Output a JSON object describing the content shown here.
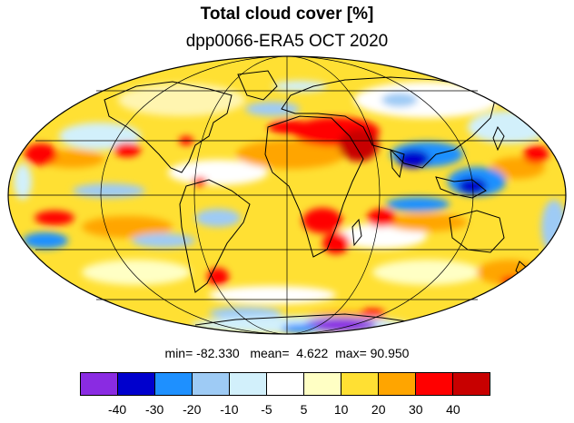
{
  "title": "Total cloud cover [%]",
  "subtitle": "dpp0066-ERA5 OCT 2020",
  "stats": {
    "min_label": "min=",
    "min": "-82.330",
    "mean_label": "mean=",
    "mean": "4.622",
    "max_label": "max=",
    "max": "90.950"
  },
  "map": {
    "projection": "mollweide",
    "field": "total cloud cover difference",
    "regions": [
      {
        "name": "north-africa-arabia-positive",
        "value": 35
      },
      {
        "name": "southern-africa-positive",
        "value": 35
      },
      {
        "name": "indian-ocean-negative",
        "value": -35
      },
      {
        "name": "maritime-continent-negative",
        "value": -25
      },
      {
        "name": "south-america-west-coast-positive",
        "value": 35
      },
      {
        "name": "antarctica-negative",
        "value": -40
      },
      {
        "name": "antarctic-coast-positive",
        "value": 25
      }
    ]
  },
  "colorbar": {
    "colors": [
      "#8a2be2",
      "#0000cd",
      "#1e90ff",
      "#9ecbf5",
      "#d2f0fb",
      "#ffffff",
      "#ffffc4",
      "#ffe033",
      "#ffa500",
      "#ff0000",
      "#c80000"
    ],
    "tick_labels": [
      "-40",
      "-30",
      "-20",
      "-10",
      "-5",
      "5",
      "10",
      "20",
      "30",
      "40"
    ]
  }
}
